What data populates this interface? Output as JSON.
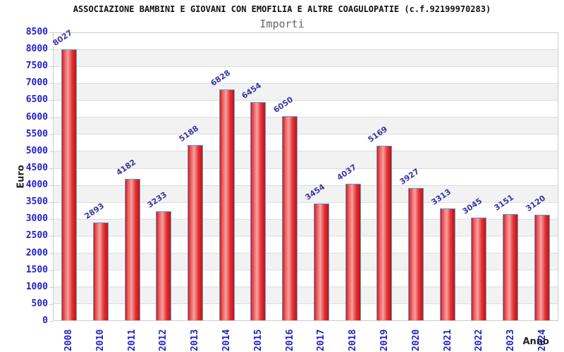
{
  "header": {
    "title": "ASSOCIAZIONE BAMBINI E GIOVANI CON EMOFILIA E ALTRE COAGULOPATIE (c.f.92199970283)",
    "subtitle": "Importi"
  },
  "axes": {
    "y_title": "Euro",
    "x_title": "Anno"
  },
  "chart_data": {
    "type": "bar",
    "title": "ASSOCIAZIONE BAMBINI E GIOVANI CON EMOFILIA E ALTRE COAGULOPATIE (c.f.92199970283)",
    "subtitle": "Importi",
    "xlabel": "Anno",
    "ylabel": "Euro",
    "categories": [
      "2008",
      "2010",
      "2011",
      "2012",
      "2013",
      "2014",
      "2015",
      "2016",
      "2017",
      "2018",
      "2019",
      "2020",
      "2021",
      "2022",
      "2023",
      "2024"
    ],
    "values": [
      8027,
      2893,
      4182,
      3233,
      5188,
      6828,
      6454,
      6050,
      3454,
      4037,
      5169,
      3927,
      3313,
      3045,
      3151,
      3120
    ],
    "ylim": [
      0,
      8500
    ],
    "y_ticks": [
      0,
      500,
      1000,
      1500,
      2000,
      2500,
      3000,
      3500,
      4000,
      4500,
      5000,
      5500,
      6000,
      6500,
      7000,
      7500,
      8000,
      8500
    ],
    "grid": "horizontal gridlines with alternating shaded bands",
    "legend": "none",
    "bar_labels_rotation_deg": -35,
    "x_tick_rotation_deg": -90
  },
  "style": {
    "bar_border_color": "#58a0dc",
    "bar_fill_main": "#d91c1c",
    "bar_fill_highlight": "#f5a2a2",
    "tick_label_color": "#2222cc",
    "value_label_color": "#3636a8",
    "band_shaded_color": "#f2f2f2",
    "gridline_color": "#dddddd",
    "subtitle_color": "#666666",
    "title_color": "#111111"
  }
}
